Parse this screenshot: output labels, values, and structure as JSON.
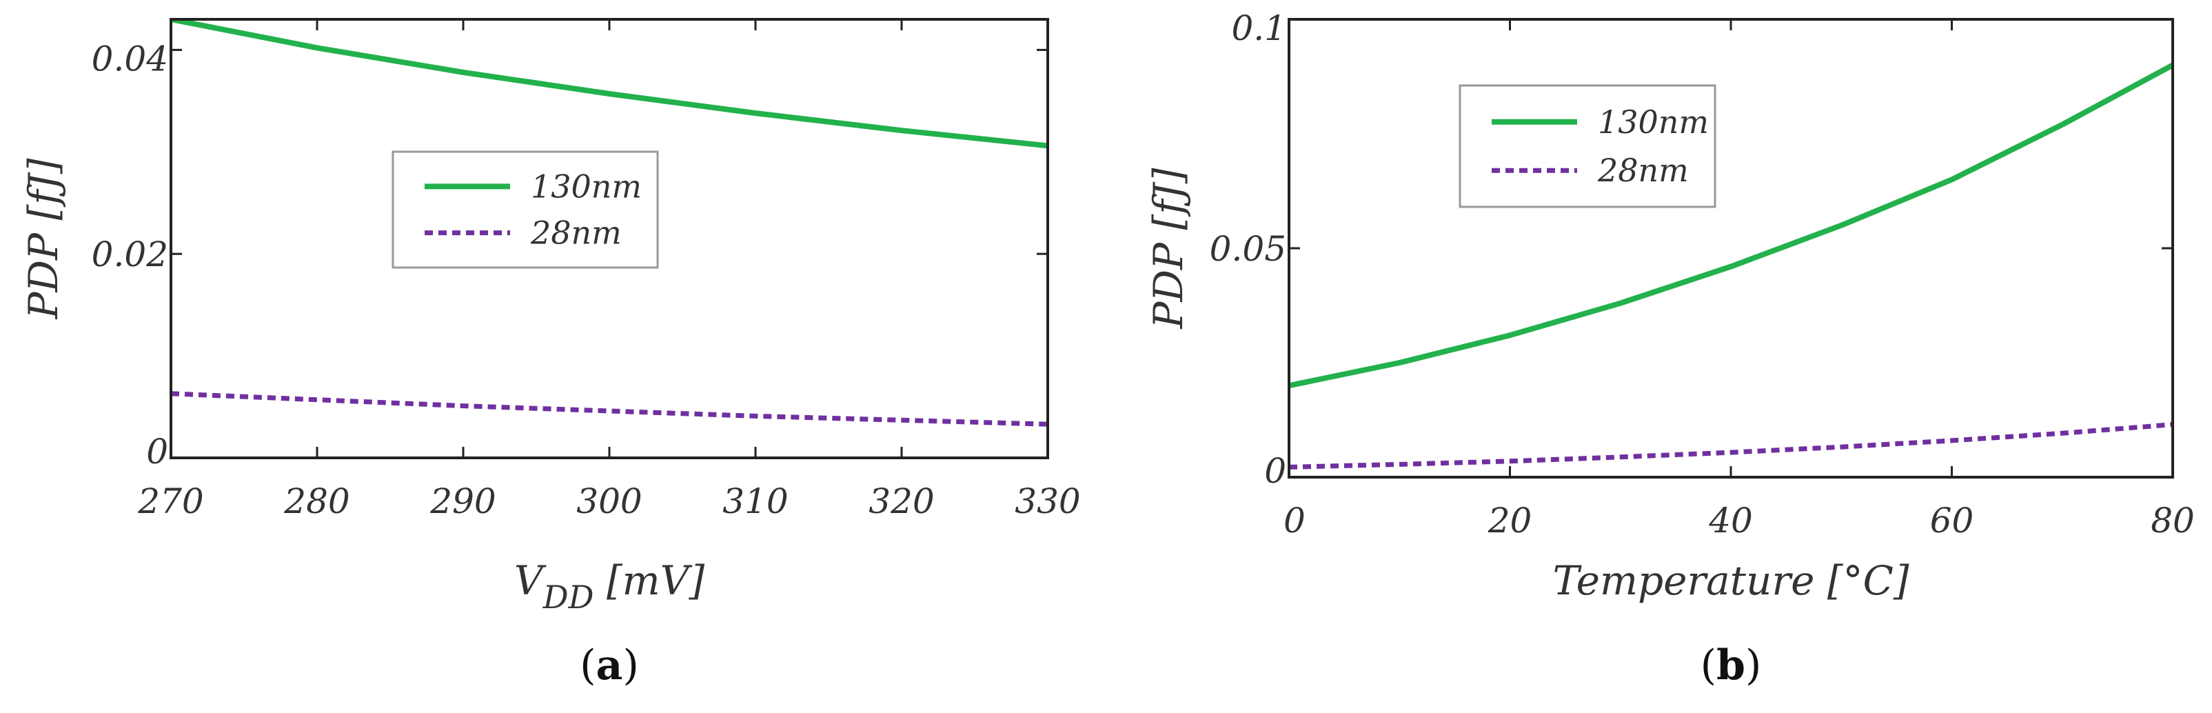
{
  "chart_data": [
    {
      "type": "line",
      "panel_label": "a",
      "xlabel_main": "V",
      "xlabel_sub": "DD",
      "xlabel_unit": " [mV]",
      "ylabel": "PDP [fJ]",
      "xlim": [
        270,
        330
      ],
      "ylim": [
        0,
        0.043
      ],
      "x_ticks": [
        270,
        280,
        290,
        300,
        310,
        320,
        330
      ],
      "x_tick_labels": [
        "270",
        "280",
        "290",
        "300",
        "310",
        "320",
        "330"
      ],
      "y_ticks": [
        0,
        0.02,
        0.04
      ],
      "y_tick_labels": [
        "0",
        "0.02",
        "0.04"
      ],
      "legend_position": "center",
      "grid": false,
      "series": [
        {
          "name": "130nm",
          "color": "#22b14c",
          "dash": "solid",
          "x": [
            270,
            280,
            290,
            300,
            310,
            320,
            330
          ],
          "y": [
            0.043,
            0.0402,
            0.0378,
            0.0357,
            0.0338,
            0.0321,
            0.0306
          ]
        },
        {
          "name": "28nm",
          "color": "#7030a0",
          "dash": "dashed",
          "x": [
            270,
            280,
            290,
            300,
            310,
            320,
            330
          ],
          "y": [
            0.0063,
            0.0057,
            0.0051,
            0.0046,
            0.0041,
            0.0037,
            0.0033
          ]
        }
      ]
    },
    {
      "type": "line",
      "panel_label": "b",
      "xlabel_main": "Temperature [°C]",
      "xlabel_sub": "",
      "xlabel_unit": "",
      "ylabel": "PDP [fJ]",
      "xlim": [
        0,
        80
      ],
      "ylim": [
        0,
        0.1
      ],
      "x_ticks": [
        0,
        20,
        40,
        60,
        80
      ],
      "x_tick_labels": [
        "0",
        "20",
        "40",
        "60",
        "80"
      ],
      "y_ticks": [
        0,
        0.05,
        0.1
      ],
      "y_tick_labels": [
        "0",
        "0.05",
        "0.1"
      ],
      "legend_position": "top-left",
      "grid": false,
      "series": [
        {
          "name": "130nm",
          "color": "#22b14c",
          "dash": "solid",
          "x": [
            0,
            10,
            20,
            30,
            40,
            50,
            60,
            70,
            80
          ],
          "y": [
            0.02,
            0.025,
            0.031,
            0.038,
            0.046,
            0.055,
            0.065,
            0.077,
            0.09
          ]
        },
        {
          "name": "28nm",
          "color": "#7030a0",
          "dash": "dashed",
          "x": [
            0,
            10,
            20,
            30,
            40,
            50,
            60,
            70,
            80
          ],
          "y": [
            0.0022,
            0.0028,
            0.0035,
            0.0044,
            0.0054,
            0.0066,
            0.008,
            0.0096,
            0.0115
          ]
        }
      ]
    }
  ]
}
